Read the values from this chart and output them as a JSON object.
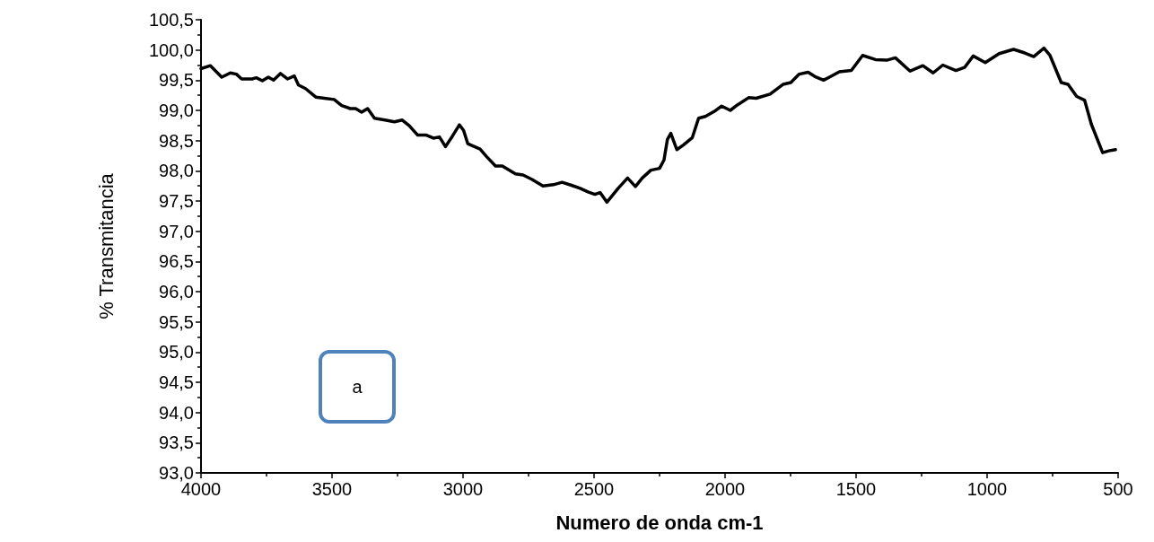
{
  "chart_data": {
    "type": "line",
    "xlabel": "Numero de onda cm-1",
    "ylabel": "% Transmitancia",
    "annotations": [
      "a"
    ],
    "xlim": [
      4000,
      500
    ],
    "xticks": [
      4000,
      3500,
      3000,
      2500,
      2000,
      1500,
      1000,
      500
    ],
    "ylim": [
      93.0,
      100.5
    ],
    "yticks": [
      {
        "value": 93.0,
        "label": "93,0"
      },
      {
        "value": 93.5,
        "label": "93,5"
      },
      {
        "value": 94.0,
        "label": "94,0"
      },
      {
        "value": 94.5,
        "label": "94,5"
      },
      {
        "value": 95.0,
        "label": "95,0"
      },
      {
        "value": 95.5,
        "label": "95,5"
      },
      {
        "value": 96.0,
        "label": "96,0"
      },
      {
        "value": 96.5,
        "label": "96,5"
      },
      {
        "value": 97.0,
        "label": "97,0"
      },
      {
        "value": 97.5,
        "label": "97,5"
      },
      {
        "value": 98.0,
        "label": "98,0"
      },
      {
        "value": 98.5,
        "label": "98,5"
      },
      {
        "value": 99.0,
        "label": "99,0"
      },
      {
        "value": 99.5,
        "label": "99,5"
      },
      {
        "value": 100.0,
        "label": "100,0"
      },
      {
        "value": 100.5,
        "label": "100,5"
      }
    ],
    "grid": false,
    "marker": "none",
    "line_style": "solid",
    "series": [
      {
        "color": "#000000",
        "x": [
          4000,
          3964,
          3921,
          3888,
          3865,
          3845,
          3805,
          3789,
          3766,
          3743,
          3723,
          3697,
          3670,
          3644,
          3628,
          3601,
          3562,
          3529,
          3492,
          3463,
          3430,
          3410,
          3387,
          3364,
          3338,
          3298,
          3262,
          3232,
          3206,
          3173,
          3140,
          3113,
          3090,
          3067,
          3041,
          3014,
          2998,
          2982,
          2935,
          2909,
          2876,
          2850,
          2800,
          2771,
          2738,
          2695,
          2655,
          2622,
          2586,
          2553,
          2523,
          2497,
          2477,
          2451,
          2408,
          2372,
          2342,
          2316,
          2283,
          2250,
          2233,
          2220,
          2207,
          2184,
          2158,
          2125,
          2101,
          2075,
          2042,
          2013,
          1980,
          1953,
          1910,
          1881,
          1828,
          1779,
          1749,
          1717,
          1683,
          1657,
          1624,
          1597,
          1564,
          1518,
          1475,
          1426,
          1383,
          1350,
          1294,
          1245,
          1206,
          1169,
          1119,
          1086,
          1053,
          1007,
          954,
          899,
          856,
          822,
          783,
          760,
          717,
          691,
          658,
          628,
          602,
          559,
          536,
          510
        ],
        "values": [
          99.69,
          99.74,
          99.55,
          99.62,
          99.6,
          99.52,
          99.52,
          99.54,
          99.49,
          99.55,
          99.5,
          99.61,
          99.52,
          99.57,
          99.42,
          99.36,
          99.22,
          99.2,
          99.18,
          99.08,
          99.03,
          99.03,
          98.97,
          99.03,
          98.87,
          98.84,
          98.81,
          98.84,
          98.75,
          98.59,
          98.59,
          98.54,
          98.56,
          98.4,
          98.57,
          98.76,
          98.67,
          98.45,
          98.36,
          98.23,
          98.08,
          98.08,
          97.95,
          97.93,
          97.86,
          97.75,
          97.77,
          97.81,
          97.76,
          97.71,
          97.65,
          97.61,
          97.64,
          97.48,
          97.71,
          97.88,
          97.74,
          97.88,
          98.01,
          98.04,
          98.18,
          98.52,
          98.62,
          98.35,
          98.43,
          98.55,
          98.87,
          98.9,
          98.98,
          99.07,
          99.0,
          99.09,
          99.21,
          99.2,
          99.27,
          99.43,
          99.46,
          99.6,
          99.63,
          99.56,
          99.5,
          99.56,
          99.64,
          99.66,
          99.91,
          99.84,
          99.83,
          99.87,
          99.65,
          99.74,
          99.62,
          99.75,
          99.66,
          99.71,
          99.9,
          99.79,
          99.94,
          100.01,
          99.95,
          99.89,
          100.03,
          99.91,
          99.46,
          99.43,
          99.23,
          99.17,
          98.77,
          98.3,
          98.33,
          98.35
        ]
      }
    ]
  }
}
